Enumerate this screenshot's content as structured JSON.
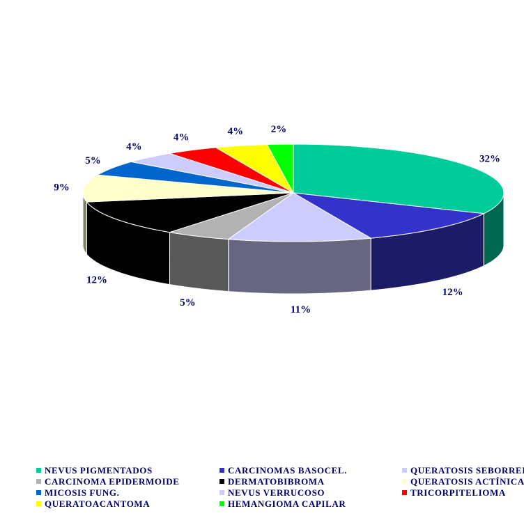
{
  "chart_data": {
    "type": "pie",
    "title": "",
    "style": "3d-exploded",
    "series": [
      {
        "label": "NEVUS PIGMENTADOS",
        "value": 32,
        "display": "32%",
        "color": "#00CC99",
        "side_color": "#006650"
      },
      {
        "label": "CARCINOMAS BASOCEL.",
        "value": 12,
        "display": "12%",
        "color": "#3333CC",
        "side_color": "#1C1C66"
      },
      {
        "label": "QUERATOSIS SEBORREICA",
        "value": 11,
        "display": "11%",
        "color": "#CCCCFF",
        "side_color": "#666680"
      },
      {
        "label": "CARCINOMA EPIDERMOIDE",
        "value": 5,
        "display": "5%",
        "color": "#B2B2B2",
        "side_color": "#595959"
      },
      {
        "label": "DERMATOBIBROMA",
        "value": 12,
        "display": "12%",
        "color": "#000000",
        "side_color": "#000000"
      },
      {
        "label": "QUERATOSIS ACTÍNICA",
        "value": 9,
        "display": "9%",
        "color": "#FFFFCC",
        "side_color": "#808066"
      },
      {
        "label": "MICOSIS FUNG.",
        "value": 5,
        "display": "5%",
        "color": "#0066CC",
        "side_color": "#003366"
      },
      {
        "label": "NEVUS VERRUCOSO",
        "value": 4,
        "display": "4%",
        "color": "#CCCCFF",
        "side_color": "#666680"
      },
      {
        "label": "TRICORPITELIOMA",
        "value": 4,
        "display": "4%",
        "color": "#FF0000",
        "side_color": "#800000"
      },
      {
        "label": "QUERATOACANTOMA",
        "value": 4,
        "display": "4%",
        "color": "#FFFF00",
        "side_color": "#808000"
      },
      {
        "label": "HEMANGIOMA CAPILAR",
        "value": 2,
        "display": "2%",
        "color": "#00FF00",
        "side_color": "#008000"
      }
    ],
    "legend_position": "bottom"
  }
}
